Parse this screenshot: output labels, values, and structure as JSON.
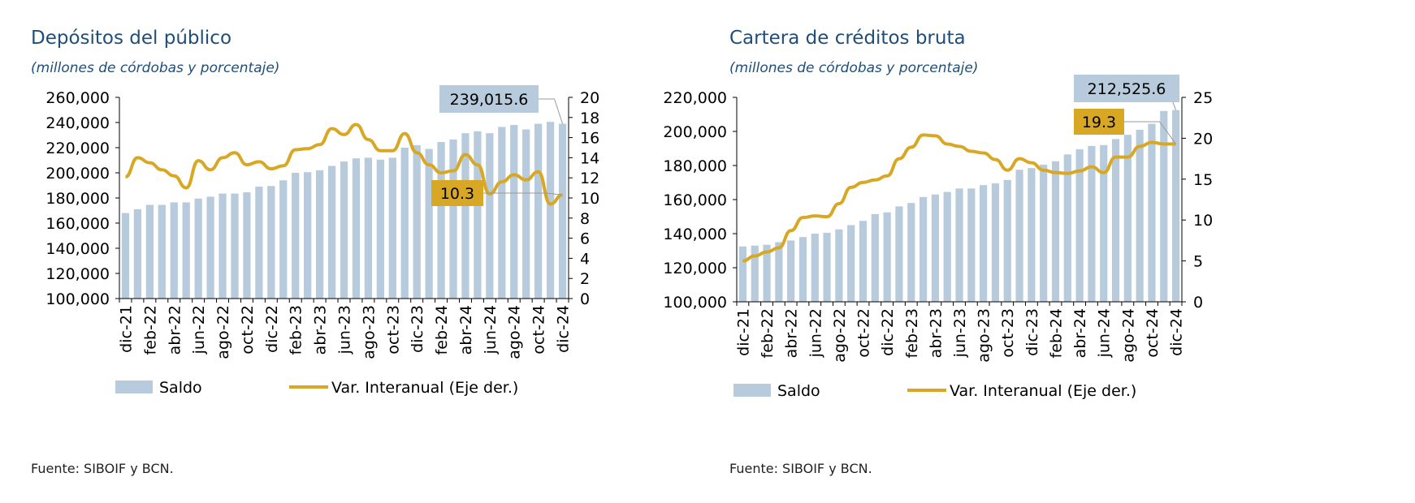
{
  "charts": [
    {
      "title": "Depósitos del público",
      "subtitle": "(millones de córdobas y porcentaje)",
      "source": "Fuente: SIBOIF y BCN.",
      "callout_bar": "239,015.6",
      "callout_line": "10.3",
      "legend": {
        "bar": "Saldo",
        "line": "Var. Interanual (Eje der.)"
      }
    },
    {
      "title": "Cartera de créditos bruta",
      "subtitle": "(millones de córdobas y porcentaje)",
      "source": "Fuente: SIBOIF y BCN.",
      "callout_bar": "212,525.6",
      "callout_line": "19.3",
      "legend": {
        "bar": "Saldo",
        "line": "Var. Interanual (Eje der.)"
      }
    }
  ],
  "colors": {
    "bar": "#b7cbdc",
    "line": "#d8a824",
    "title": "#1f4e79",
    "callout_line_box": "#d8a824",
    "callout_bar_box": "#b7cbdc"
  },
  "chart_data": [
    {
      "type": "bar",
      "title": "Depósitos del público",
      "categories": [
        "dic-21",
        "ene-22",
        "feb-22",
        "mar-22",
        "abr-22",
        "may-22",
        "jun-22",
        "jul-22",
        "ago-22",
        "sep-22",
        "oct-22",
        "nov-22",
        "dic-22",
        "ene-23",
        "feb-23",
        "mar-23",
        "abr-23",
        "may-23",
        "jun-23",
        "jul-23",
        "ago-23",
        "sep-23",
        "oct-23",
        "nov-23",
        "dic-23",
        "ene-24",
        "feb-24",
        "mar-24",
        "abr-24",
        "may-24",
        "jun-24",
        "jul-24",
        "ago-24",
        "sep-24",
        "oct-24",
        "nov-24",
        "dic-24"
      ],
      "tick_labels": [
        "dic-21",
        "feb-22",
        "abr-22",
        "jun-22",
        "ago-22",
        "oct-22",
        "dic-22",
        "feb-23",
        "abr-23",
        "jun-23",
        "ago-23",
        "oct-23",
        "dic-23",
        "feb-24",
        "abr-24",
        "jun-24",
        "ago-24",
        "oct-24",
        "dic-24"
      ],
      "series": [
        {
          "name": "Saldo",
          "type": "bar",
          "axis": "left",
          "values": [
            168000,
            171000,
            174500,
            174500,
            176500,
            176500,
            179500,
            181000,
            183500,
            183500,
            184500,
            189000,
            189500,
            194000,
            200000,
            200500,
            202000,
            205500,
            209000,
            211500,
            212000,
            210500,
            212000,
            220000,
            222000,
            219000,
            224500,
            226500,
            231500,
            233000,
            231500,
            236500,
            238000,
            234500,
            239000,
            240500,
            239015.6
          ]
        },
        {
          "name": "Var. Interanual (Eje der.)",
          "type": "line",
          "axis": "right",
          "values": [
            12.1,
            14.0,
            13.5,
            12.8,
            12.2,
            11.0,
            13.7,
            12.8,
            14.0,
            14.5,
            13.3,
            13.6,
            12.9,
            13.2,
            14.8,
            14.9,
            15.3,
            16.9,
            16.3,
            17.3,
            15.8,
            14.7,
            14.7,
            16.4,
            14.5,
            13.3,
            12.5,
            12.7,
            14.3,
            13.3,
            10.4,
            11.6,
            12.3,
            11.8,
            12.6,
            9.4,
            10.3
          ]
        }
      ],
      "ylim_left": [
        100000,
        260000
      ],
      "yticks_left": [
        "100,000",
        "120,000",
        "140,000",
        "160,000",
        "180,000",
        "200,000",
        "220,000",
        "240,000",
        "260,000"
      ],
      "ylim_right": [
        0,
        20
      ],
      "yticks_right": [
        "0",
        "2",
        "4",
        "6",
        "8",
        "10",
        "12",
        "14",
        "16",
        "18",
        "20"
      ],
      "annotations": [
        "239,015.6",
        "10.3"
      ],
      "legend_position": "bottom",
      "grid": false
    },
    {
      "type": "bar",
      "title": "Cartera de créditos bruta",
      "categories": [
        "dic-21",
        "ene-22",
        "feb-22",
        "mar-22",
        "abr-22",
        "may-22",
        "jun-22",
        "jul-22",
        "ago-22",
        "sep-22",
        "oct-22",
        "nov-22",
        "dic-22",
        "ene-23",
        "feb-23",
        "mar-23",
        "abr-23",
        "may-23",
        "jun-23",
        "jul-23",
        "ago-23",
        "sep-23",
        "oct-23",
        "nov-23",
        "dic-23",
        "ene-24",
        "feb-24",
        "mar-24",
        "abr-24",
        "may-24",
        "jun-24",
        "jul-24",
        "ago-24",
        "sep-24",
        "oct-24",
        "nov-24",
        "dic-24"
      ],
      "tick_labels": [
        "dic-21",
        "feb-22",
        "abr-22",
        "jun-22",
        "ago-22",
        "oct-22",
        "dic-22",
        "feb-23",
        "abr-23",
        "jun-23",
        "ago-23",
        "oct-23",
        "dic-23",
        "feb-24",
        "abr-24",
        "jun-24",
        "ago-24",
        "oct-24",
        "dic-24"
      ],
      "series": [
        {
          "name": "Saldo",
          "type": "bar",
          "axis": "left",
          "values": [
            132500,
            133000,
            133500,
            135000,
            136000,
            138000,
            140000,
            140500,
            142500,
            145000,
            147500,
            151500,
            152500,
            156000,
            158000,
            161500,
            163000,
            164500,
            166500,
            166500,
            168500,
            169500,
            171500,
            177500,
            178500,
            180500,
            182500,
            186500,
            189500,
            191500,
            192000,
            195500,
            198000,
            201000,
            204500,
            212000,
            212525.6
          ]
        },
        {
          "name": "Var. Interanual (Eje der.)",
          "type": "line",
          "axis": "right",
          "values": [
            5.0,
            5.6,
            6.1,
            6.6,
            8.7,
            10.3,
            10.5,
            10.4,
            12.0,
            14.0,
            14.6,
            14.9,
            15.4,
            17.5,
            18.9,
            20.4,
            20.3,
            19.3,
            19.0,
            18.4,
            18.2,
            17.4,
            16.1,
            17.5,
            17.0,
            16.1,
            15.8,
            15.7,
            16.0,
            16.5,
            15.8,
            17.7,
            17.7,
            19.0,
            19.5,
            19.3,
            19.3
          ]
        }
      ],
      "ylim_left": [
        100000,
        220000
      ],
      "yticks_left": [
        "100,000",
        "120,000",
        "140,000",
        "160,000",
        "180,000",
        "200,000",
        "220,000"
      ],
      "ylim_right": [
        0,
        25
      ],
      "yticks_right": [
        "0",
        "5",
        "10",
        "15",
        "20",
        "25"
      ],
      "annotations": [
        "212,525.6",
        "19.3"
      ],
      "legend_position": "bottom",
      "grid": false
    }
  ]
}
